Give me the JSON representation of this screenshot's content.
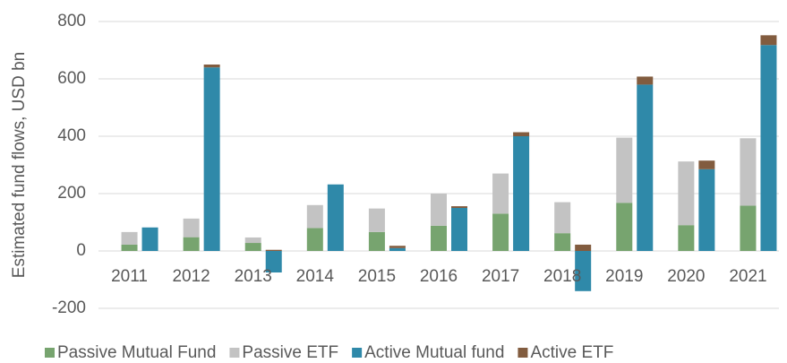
{
  "chart_data": {
    "type": "stacked_grouped_bar",
    "y_axis_label": "Estimated fund flows, USD bn",
    "categories": [
      "2011",
      "2012",
      "2013",
      "2014",
      "2015",
      "2016",
      "2017",
      "2018",
      "2019",
      "2020",
      "2021"
    ],
    "series": [
      {
        "name": "Passive Mutual Fund",
        "color": "#77a46f",
        "stack": "passive",
        "values": [
          22,
          48,
          28,
          80,
          66,
          88,
          130,
          62,
          168,
          90,
          158
        ]
      },
      {
        "name": "Passive ETF",
        "color": "#c3c3c3",
        "stack": "passive",
        "values": [
          44,
          65,
          19,
          80,
          82,
          112,
          140,
          108,
          227,
          222,
          235
        ]
      },
      {
        "name": "Active Mutual fund",
        "color": "#2f89a9",
        "stack": "active",
        "values": [
          82,
          640,
          -75,
          232,
          10,
          150,
          400,
          -140,
          580,
          285,
          718
        ]
      },
      {
        "name": "Active ETF",
        "color": "#825c3f",
        "stack": "active",
        "values": [
          0,
          10,
          4,
          0,
          8,
          6,
          14,
          22,
          28,
          30,
          34
        ]
      }
    ],
    "ylim": [
      -200,
      800
    ],
    "yticks": [
      -200,
      0,
      200,
      400,
      600,
      800
    ],
    "grid": true,
    "legend": "bottom"
  }
}
